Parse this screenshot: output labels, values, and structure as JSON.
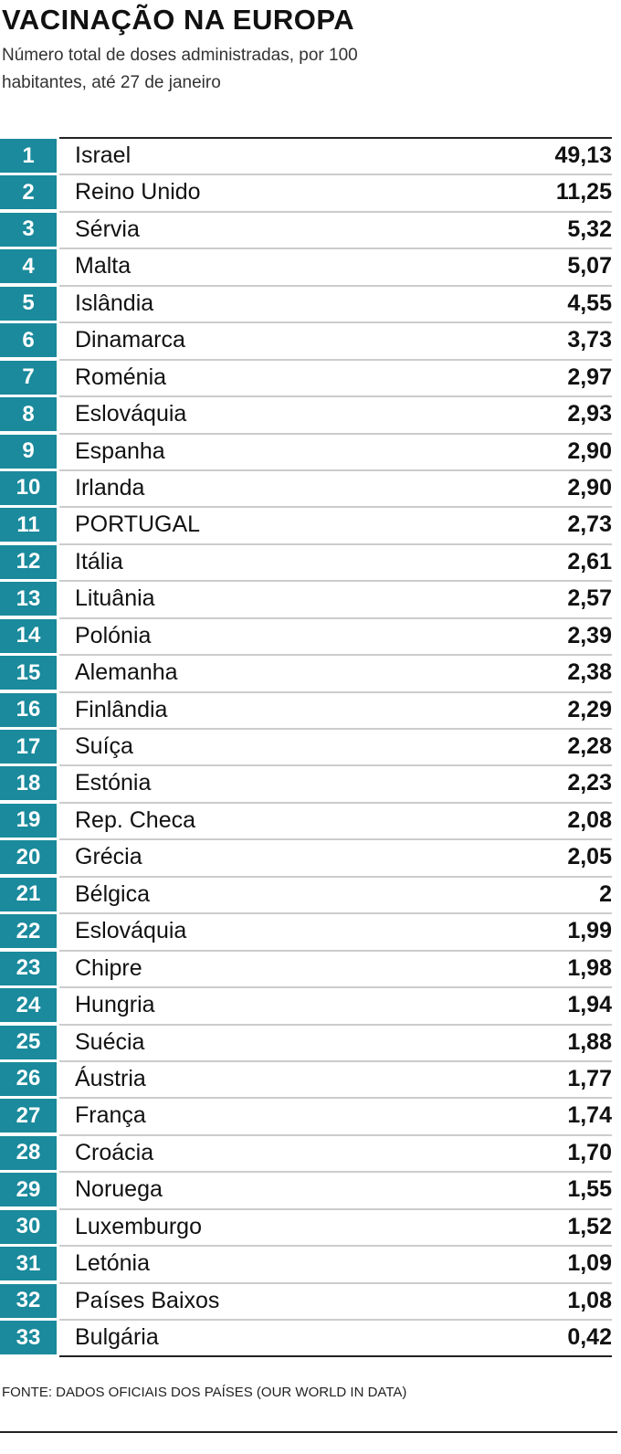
{
  "chart_data": {
    "type": "table",
    "title": "VACINAÇÃO NA EUROPA",
    "subtitle": "Número total de doses administradas, por 100 habitantes, até 27 de janeiro",
    "accent_color": "#1a8a9c",
    "rows": [
      {
        "rank": "1",
        "country": "Israel",
        "value": "49,13"
      },
      {
        "rank": "2",
        "country": "Reino Unido",
        "value": "11,25"
      },
      {
        "rank": "3",
        "country": "Sérvia",
        "value": "5,32"
      },
      {
        "rank": "4",
        "country": "Malta",
        "value": "5,07"
      },
      {
        "rank": "5",
        "country": "Islândia",
        "value": "4,55"
      },
      {
        "rank": "6",
        "country": "Dinamarca",
        "value": "3,73"
      },
      {
        "rank": "7",
        "country": "Roménia",
        "value": "2,97"
      },
      {
        "rank": "8",
        "country": "Eslováquia",
        "value": "2,93"
      },
      {
        "rank": "9",
        "country": "Espanha",
        "value": "2,90"
      },
      {
        "rank": "10",
        "country": "Irlanda",
        "value": "2,90"
      },
      {
        "rank": "11",
        "country": "PORTUGAL",
        "value": "2,73"
      },
      {
        "rank": "12",
        "country": "Itália",
        "value": "2,61"
      },
      {
        "rank": "13",
        "country": "Lituânia",
        "value": "2,57"
      },
      {
        "rank": "14",
        "country": "Polónia",
        "value": "2,39"
      },
      {
        "rank": "15",
        "country": "Alemanha",
        "value": "2,38"
      },
      {
        "rank": "16",
        "country": "Finlândia",
        "value": "2,29"
      },
      {
        "rank": "17",
        "country": "Suíça",
        "value": "2,28"
      },
      {
        "rank": "18",
        "country": "Estónia",
        "value": "2,23"
      },
      {
        "rank": "19",
        "country": "Rep. Checa",
        "value": "2,08"
      },
      {
        "rank": "20",
        "country": "Grécia",
        "value": "2,05"
      },
      {
        "rank": "21",
        "country": "Bélgica",
        "value": "2"
      },
      {
        "rank": "22",
        "country": "Eslováquia",
        "value": "1,99"
      },
      {
        "rank": "23",
        "country": "Chipre",
        "value": "1,98"
      },
      {
        "rank": "24",
        "country": "Hungria",
        "value": "1,94"
      },
      {
        "rank": "25",
        "country": "Suécia",
        "value": "1,88"
      },
      {
        "rank": "26",
        "country": "Áustria",
        "value": "1,77"
      },
      {
        "rank": "27",
        "country": "França",
        "value": "1,74"
      },
      {
        "rank": "28",
        "country": "Croácia",
        "value": "1,70"
      },
      {
        "rank": "29",
        "country": "Noruega",
        "value": "1,55"
      },
      {
        "rank": "30",
        "country": "Luxemburgo",
        "value": "1,52"
      },
      {
        "rank": "31",
        "country": "Letónia",
        "value": "1,09"
      },
      {
        "rank": "32",
        "country": "Países Baixos",
        "value": "1,08"
      },
      {
        "rank": "33",
        "country": "Bulgária",
        "value": "0,42"
      }
    ],
    "source": "FONTE: DADOS OFICIAIS DOS PAÍSES (OUR WORLD IN DATA)"
  }
}
